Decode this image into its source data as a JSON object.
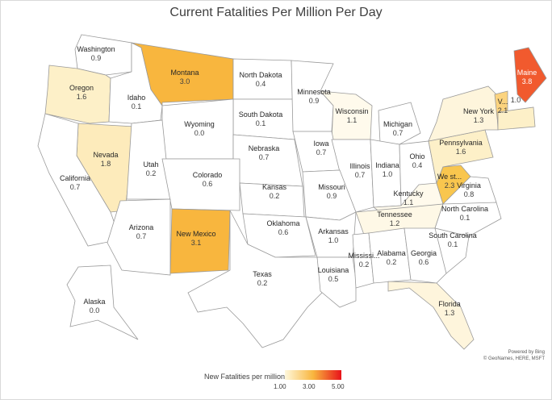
{
  "title": "Current Fatalities Per Million Per Day",
  "attribution": [
    "Powered by Bing",
    "© GeoNames, HERE, MSFT"
  ],
  "legend": {
    "title": "New Fatalities per million",
    "ticks": [
      "1.00",
      "3.00",
      "5.00"
    ],
    "colors": {
      "low": "#fff8dc",
      "mid": "#f8b63e",
      "high": "#e8121a"
    }
  },
  "states": [
    {
      "name": "Washington",
      "value": "0.9",
      "fill": "#ffffff"
    },
    {
      "name": "Oregon",
      "value": "1.6",
      "fill": "#fdf0c8"
    },
    {
      "name": "Idaho",
      "value": "0.1",
      "fill": "#ffffff"
    },
    {
      "name": "Montana",
      "value": "3.0",
      "fill": "#f8b63e"
    },
    {
      "name": "North Dakota",
      "value": "0.4",
      "fill": "#ffffff"
    },
    {
      "name": "South Dakota",
      "value": "0.1",
      "fill": "#ffffff"
    },
    {
      "name": "Minnesota",
      "value": "0.9",
      "fill": "#ffffff"
    },
    {
      "name": "Wisconsin",
      "value": "1.1",
      "fill": "#fffaec"
    },
    {
      "name": "Michigan",
      "value": "0.7",
      "fill": "#ffffff"
    },
    {
      "name": "Wyoming",
      "value": "0.0",
      "fill": "#ffffff"
    },
    {
      "name": "Nebraska",
      "value": "0.7",
      "fill": "#ffffff"
    },
    {
      "name": "Iowa",
      "value": "0.7",
      "fill": "#ffffff"
    },
    {
      "name": "Illinois",
      "value": "0.7",
      "fill": "#ffffff"
    },
    {
      "name": "Indiana",
      "value": "1.0",
      "fill": "#ffffff"
    },
    {
      "name": "Ohio",
      "value": "0.4",
      "fill": "#ffffff"
    },
    {
      "name": "Pennsylvania",
      "value": "1.6",
      "fill": "#fdf0c8"
    },
    {
      "name": "New York",
      "value": "1.3",
      "fill": "#fef5dc"
    },
    {
      "name": "Maine",
      "value": "3.8",
      "fill": "#f15a2e"
    },
    {
      "name": "V...",
      "value": "2.1",
      "fill": "#fbd37e"
    },
    {
      "name": "",
      "value": "1.0",
      "fill": "#fdf0c8"
    },
    {
      "name": "Nevada",
      "value": "1.8",
      "fill": "#fdebbb"
    },
    {
      "name": "Utah",
      "value": "0.2",
      "fill": "#ffffff"
    },
    {
      "name": "Colorado",
      "value": "0.6",
      "fill": "#ffffff"
    },
    {
      "name": "Kansas",
      "value": "0.2",
      "fill": "#ffffff"
    },
    {
      "name": "Missouri",
      "value": "0.9",
      "fill": "#ffffff"
    },
    {
      "name": "Kentucky",
      "value": "1.1",
      "fill": "#fffaec"
    },
    {
      "name": "We st...",
      "value": "2.3",
      "fill": "#f9c64e"
    },
    {
      "name": "Virginia",
      "value": "0.8",
      "fill": "#ffffff"
    },
    {
      "name": "California",
      "value": "0.7",
      "fill": "#ffffff"
    },
    {
      "name": "Arizona",
      "value": "0.7",
      "fill": "#ffffff"
    },
    {
      "name": "New Mexico",
      "value": "3.1",
      "fill": "#f8b63e"
    },
    {
      "name": "Oklahoma",
      "value": "0.6",
      "fill": "#ffffff"
    },
    {
      "name": "Arkansas",
      "value": "1.0",
      "fill": "#ffffff"
    },
    {
      "name": "Tennessee",
      "value": "1.2",
      "fill": "#fef8e6"
    },
    {
      "name": "North Carolina",
      "value": "0.1",
      "fill": "#ffffff"
    },
    {
      "name": "South Carolina",
      "value": "0.1",
      "fill": "#ffffff"
    },
    {
      "name": "Texas",
      "value": "0.2",
      "fill": "#ffffff"
    },
    {
      "name": "Louisiana",
      "value": "0.5",
      "fill": "#ffffff"
    },
    {
      "name": "Mississi...",
      "value": "0.2",
      "fill": "#ffffff"
    },
    {
      "name": "Alabama",
      "value": "0.2",
      "fill": "#ffffff"
    },
    {
      "name": "Georgia",
      "value": "0.6",
      "fill": "#ffffff"
    },
    {
      "name": "Florida",
      "value": "1.3",
      "fill": "#fef5dc"
    },
    {
      "name": "Alaska",
      "value": "0.0",
      "fill": "#ffffff"
    }
  ]
}
